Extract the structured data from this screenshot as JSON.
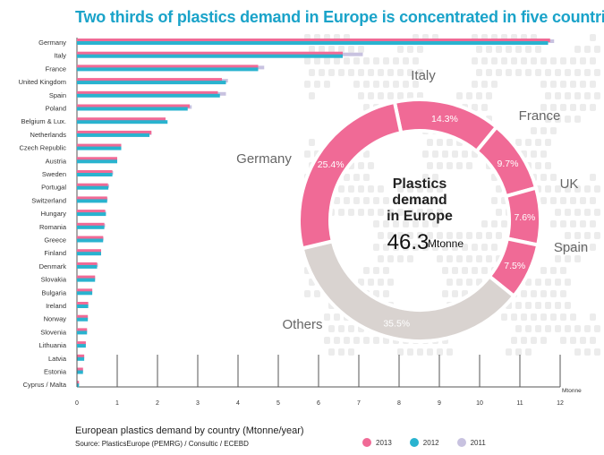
{
  "title": "Two thirds of plastics demand in Europe is concentrated in five countries",
  "caption": "European plastics demand by country (Mtonne/year)",
  "source": "Source: PlasticsEurope (PEMRG) / Consultic / ECEBD",
  "colors": {
    "2013": "#f06a96",
    "2012": "#29b3cf",
    "2011": "#c8c2e0",
    "donut_top5": "#f06a96",
    "donut_others": "#d9d3d0",
    "title": "#1aa3c9"
  },
  "chart_data": [
    {
      "type": "bar",
      "orientation": "horizontal",
      "categories": [
        "Germany",
        "Italy",
        "France",
        "United Kingdom",
        "Spain",
        "Poland",
        "Belgium & Lux.",
        "Netherlands",
        "Czech Republic",
        "Austria",
        "Sweden",
        "Portugal",
        "Switzerland",
        "Hungary",
        "Romania",
        "Greece",
        "Finland",
        "Denmark",
        "Slovakia",
        "Bulgaria",
        "Ireland",
        "Norway",
        "Slovenia",
        "Lithuania",
        "Latvia",
        "Estonia",
        "Cyprus / Malta"
      ],
      "series": [
        {
          "name": "2013",
          "values": [
            11.75,
            6.6,
            4.5,
            3.6,
            3.5,
            2.8,
            2.2,
            1.85,
            1.1,
            1.0,
            0.88,
            0.77,
            0.75,
            0.7,
            0.68,
            0.65,
            0.6,
            0.5,
            0.45,
            0.38,
            0.28,
            0.27,
            0.25,
            0.22,
            0.18,
            0.15,
            0.05
          ]
        },
        {
          "name": "2012",
          "values": [
            11.7,
            6.6,
            4.5,
            3.7,
            3.55,
            2.75,
            2.25,
            1.8,
            1.1,
            1.0,
            0.88,
            0.78,
            0.75,
            0.72,
            0.68,
            0.65,
            0.6,
            0.5,
            0.45,
            0.38,
            0.28,
            0.27,
            0.25,
            0.22,
            0.18,
            0.15,
            0.05
          ]
        },
        {
          "name": "2011",
          "values": [
            11.85,
            7.1,
            4.65,
            3.75,
            3.7,
            2.85,
            2.2,
            1.85,
            1.1,
            1.0,
            0.9,
            0.8,
            0.76,
            0.72,
            0.7,
            0.66,
            0.6,
            0.52,
            0.45,
            0.38,
            0.28,
            0.27,
            0.25,
            0.22,
            0.18,
            0.15,
            0.05
          ]
        }
      ],
      "xticks": [
        "0",
        "1",
        "2",
        "3",
        "4",
        "5",
        "6",
        "7",
        "8",
        "9",
        "10",
        "11",
        "12"
      ],
      "xunit": "Mtonne",
      "xlim": [
        0,
        12
      ]
    },
    {
      "type": "pie",
      "style": "donut",
      "center_title": [
        "Plastics",
        "demand",
        "in Europe"
      ],
      "center_value": "46.3",
      "center_unit": "Mtonne",
      "slices": [
        {
          "label": "Italy",
          "value": 14.3,
          "text": "14.3%"
        },
        {
          "label": "France",
          "value": 9.7,
          "text": "9.7%"
        },
        {
          "label": "UK",
          "value": 7.6,
          "text": "7.6%"
        },
        {
          "label": "Spain",
          "value": 7.5,
          "text": "7.5%"
        },
        {
          "label": "Others",
          "value": 35.5,
          "text": "35.5%"
        },
        {
          "label": "Germany",
          "value": 25.4,
          "text": "25.4%"
        }
      ]
    }
  ]
}
